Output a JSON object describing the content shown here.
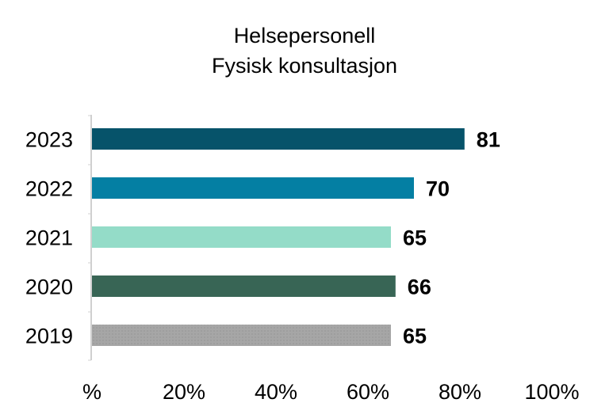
{
  "chart_data": {
    "type": "bar",
    "orientation": "horizontal",
    "title": [
      "Helsepersonell",
      "Fysisk konsultasjon"
    ],
    "categories": [
      "2023",
      "2022",
      "2021",
      "2020",
      "2019"
    ],
    "values": [
      81,
      70,
      65,
      66,
      65
    ],
    "colors": [
      "#06536a",
      "#047fa3",
      "#94dcc8",
      "#386555",
      "#a6a6a6"
    ],
    "xlim": [
      0,
      100
    ],
    "xticks": [
      "%",
      "20%",
      "40%",
      "60%",
      "80%",
      "100%"
    ],
    "xtick_values": [
      0,
      20,
      40,
      60,
      80,
      100
    ],
    "xlabel": "",
    "ylabel": "",
    "grid": false
  }
}
